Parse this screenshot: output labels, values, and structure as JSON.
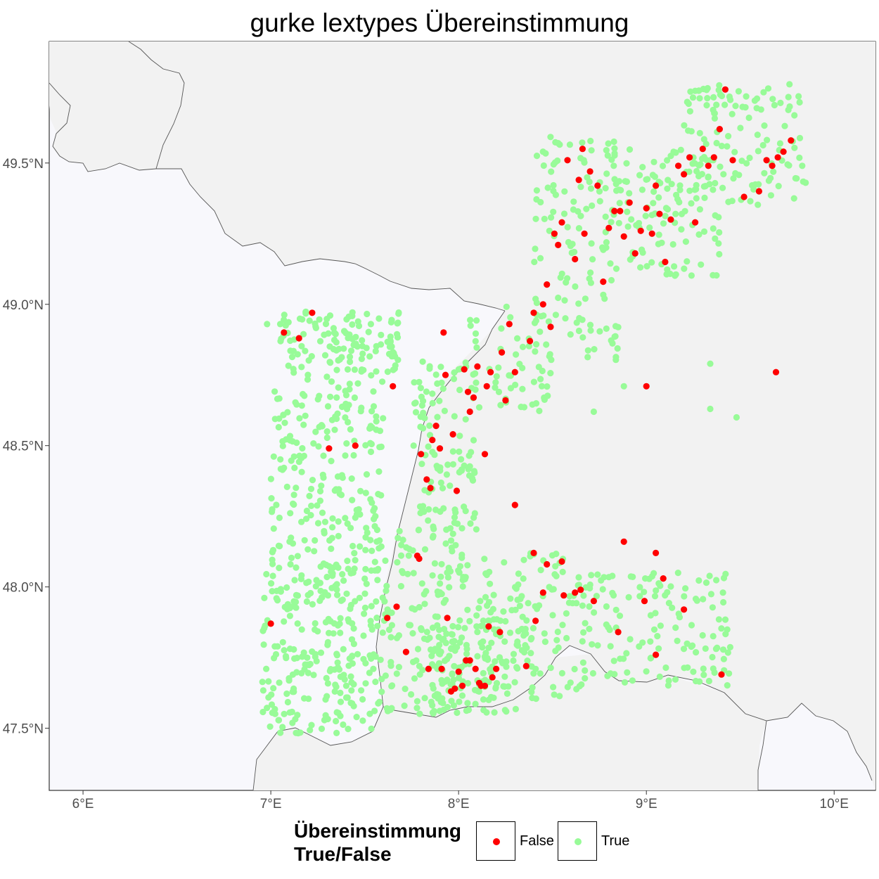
{
  "title": "gurke lextypes Übereinstimmung",
  "chart_data": {
    "type": "scatter",
    "title": "gurke lextypes Übereinstimmung",
    "xlabel": "",
    "ylabel": "",
    "xlim": [
      5.82,
      10.22
    ],
    "ylim": [
      47.28,
      49.93
    ],
    "x_ticks": [
      {
        "value": 6,
        "label": "6°E"
      },
      {
        "value": 7,
        "label": "7°E"
      },
      {
        "value": 8,
        "label": "8°E"
      },
      {
        "value": 9,
        "label": "9°E"
      },
      {
        "value": 10,
        "label": "10°E"
      }
    ],
    "y_ticks": [
      {
        "value": 47.5,
        "label": "47.5°N"
      },
      {
        "value": 48.0,
        "label": "48.0°N"
      },
      {
        "value": 48.5,
        "label": "48.5°N"
      },
      {
        "value": 49.0,
        "label": "49.0°N"
      },
      {
        "value": 49.5,
        "label": "49.5°N"
      }
    ],
    "legend": {
      "title_line1": "Übereinstimmung",
      "title_line2": "True/False",
      "position": "bottom",
      "entries": [
        {
          "label": "False",
          "color": "#ff0000"
        },
        {
          "label": "True",
          "color": "#98fb98"
        }
      ]
    },
    "colors": {
      "false": "#ff0000",
      "true": "#98fb98",
      "panel": "#f8f8fc",
      "land_outside": "#f2f2f2",
      "border": "#555555"
    },
    "series": [
      {
        "name": "False",
        "x": [
          7.07,
          7.15,
          7.22,
          7.31,
          7.45,
          7.65,
          7.67,
          7.78,
          7.8,
          7.83,
          7.85,
          7.86,
          7.88,
          7.9,
          7.92,
          7.93,
          7.97,
          7.99,
          8.03,
          8.05,
          8.06,
          8.08,
          8.1,
          8.14,
          8.15,
          8.17,
          8.23,
          8.25,
          8.27,
          8.3,
          8.38,
          8.4,
          8.45,
          8.47,
          8.49,
          8.51,
          8.53,
          8.55,
          8.58,
          8.62,
          8.64,
          8.66,
          8.67,
          8.7,
          8.74,
          8.77,
          8.8,
          8.83,
          8.86,
          8.88,
          8.91,
          8.94,
          8.97,
          9.0,
          9.03,
          9.05,
          9.07,
          9.1,
          9.13,
          9.17,
          9.2,
          9.23,
          9.26,
          9.3,
          9.33,
          9.36,
          9.39,
          9.42,
          9.46,
          9.52,
          9.6,
          9.64,
          9.67,
          9.7,
          9.73,
          9.77,
          9.69,
          9.0,
          8.88,
          8.99,
          9.05,
          9.09,
          8.62,
          8.4,
          8.47,
          8.55,
          7.62,
          7.79,
          7.84,
          7.94,
          8.06,
          8.11,
          8.16,
          8.2,
          8.3,
          8.36,
          8.41,
          8.45,
          8.56,
          8.65,
          8.72,
          8.85,
          9.05,
          9.2,
          9.4,
          7.0,
          7.72,
          7.91,
          7.98,
          8.02,
          8.09,
          8.14,
          7.96,
          8.0,
          8.04,
          8.12,
          8.18,
          8.22
        ],
        "y": [
          48.9,
          48.88,
          48.97,
          48.49,
          48.5,
          48.71,
          47.93,
          48.11,
          48.47,
          48.38,
          48.35,
          48.52,
          48.57,
          48.49,
          48.9,
          48.75,
          48.54,
          48.34,
          48.77,
          48.69,
          48.62,
          48.67,
          48.78,
          48.47,
          48.71,
          48.76,
          48.83,
          48.66,
          48.93,
          48.76,
          48.87,
          48.97,
          49.0,
          49.07,
          48.92,
          49.25,
          49.21,
          49.29,
          49.51,
          49.16,
          49.44,
          49.55,
          49.25,
          49.47,
          49.42,
          49.08,
          49.27,
          49.33,
          49.33,
          49.24,
          49.36,
          49.18,
          49.26,
          49.34,
          49.25,
          49.42,
          49.32,
          49.15,
          49.3,
          49.49,
          49.46,
          49.52,
          49.29,
          49.55,
          49.49,
          49.52,
          49.62,
          49.76,
          49.51,
          49.38,
          49.4,
          49.51,
          49.49,
          49.52,
          49.54,
          49.58,
          48.76,
          48.71,
          48.16,
          47.95,
          48.12,
          48.03,
          47.98,
          48.12,
          48.08,
          48.09,
          47.89,
          48.1,
          47.71,
          47.89,
          47.74,
          47.66,
          47.86,
          47.71,
          48.29,
          47.72,
          47.88,
          47.98,
          47.97,
          47.99,
          47.95,
          47.84,
          47.76,
          47.92,
          47.69,
          47.87,
          47.77,
          47.71,
          47.64,
          47.65,
          47.71,
          47.65,
          47.63,
          47.7,
          47.74,
          47.65,
          47.68,
          47.84
        ]
      },
      {
        "name": "True",
        "regions": "dense coverage of the Alsace / Baden / Palatinate / Kraichgau / Swabian area between 6.9–9.85°E and 47.45–49.78°N"
      }
    ]
  }
}
